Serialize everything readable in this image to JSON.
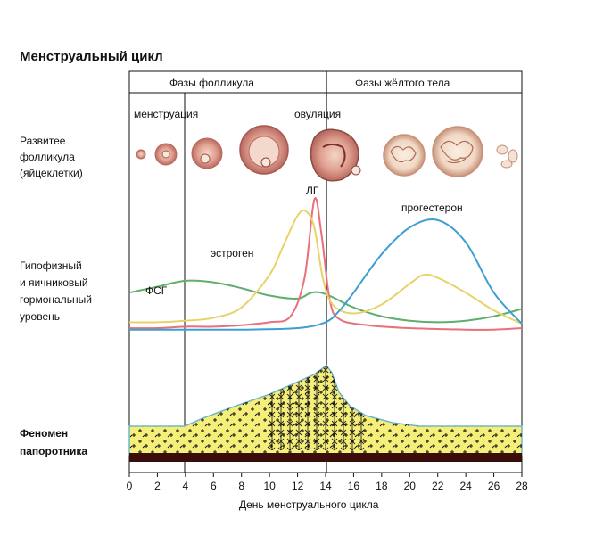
{
  "title": "Менструальный цикл",
  "phases": {
    "follicular": "Фазы фолликула",
    "luteal": "Фазы жёлтого тела"
  },
  "markers": {
    "menstruation": "менструация",
    "ovulation": "овуляция"
  },
  "row_labels": {
    "follicle": [
      "Развитее",
      "фолликула",
      "(яйцеклетки)"
    ],
    "hormones": [
      "Гипофизный",
      "и яичниковый",
      "гормональный",
      "уровень"
    ],
    "fern": [
      "Феномен",
      "папоротника"
    ]
  },
  "hormone_labels": {
    "fsh": "ФСГ",
    "lh": "ЛГ",
    "estrogen": "эстроген",
    "progesterone": "прогестерон"
  },
  "x_axis": {
    "label": "День менструального цикла",
    "ticks": [
      "0",
      "2",
      "4",
      "6",
      "8",
      "10",
      "12",
      "14",
      "16",
      "18",
      "20",
      "22",
      "24",
      "26",
      "28"
    ]
  },
  "colors": {
    "fsh": "#5fae6e",
    "lh": "#e8707a",
    "estrogen": "#e8d36a",
    "progesterone": "#3e9fd2",
    "fern_fill": "#f5ef7a",
    "fern_base": "#3b0d0a",
    "fern_outline": "#6fb8c8",
    "tissue": "#c2706a"
  },
  "chart_data": {
    "type": "line",
    "xlim": [
      0,
      28
    ],
    "xlabel": "День менструального цикла",
    "series": [
      {
        "name": "ФСГ",
        "points": [
          [
            0,
            0.3
          ],
          [
            2,
            0.34
          ],
          [
            4,
            0.38
          ],
          [
            6,
            0.37
          ],
          [
            8,
            0.33
          ],
          [
            10,
            0.28
          ],
          [
            12,
            0.26
          ],
          [
            13,
            0.3
          ],
          [
            14,
            0.29
          ],
          [
            16,
            0.2
          ],
          [
            18,
            0.14
          ],
          [
            20,
            0.11
          ],
          [
            22,
            0.1
          ],
          [
            24,
            0.11
          ],
          [
            26,
            0.14
          ],
          [
            28,
            0.19
          ]
        ]
      },
      {
        "name": "ЛГ",
        "points": [
          [
            0,
            0.06
          ],
          [
            2,
            0.06
          ],
          [
            4,
            0.07
          ],
          [
            6,
            0.07
          ],
          [
            8,
            0.08
          ],
          [
            10,
            0.1
          ],
          [
            11.5,
            0.14
          ],
          [
            12.5,
            0.4
          ],
          [
            13.2,
            0.93
          ],
          [
            13.7,
            0.7
          ],
          [
            14.3,
            0.25
          ],
          [
            15,
            0.12
          ],
          [
            17,
            0.08
          ],
          [
            20,
            0.06
          ],
          [
            24,
            0.05
          ],
          [
            26,
            0.05
          ],
          [
            28,
            0.06
          ]
        ]
      },
      {
        "name": "эстроген",
        "points": [
          [
            0,
            0.1
          ],
          [
            2,
            0.1
          ],
          [
            4,
            0.11
          ],
          [
            6,
            0.13
          ],
          [
            8,
            0.2
          ],
          [
            10,
            0.42
          ],
          [
            11,
            0.62
          ],
          [
            12,
            0.82
          ],
          [
            12.6,
            0.85
          ],
          [
            13.2,
            0.74
          ],
          [
            13.8,
            0.4
          ],
          [
            14.5,
            0.22
          ],
          [
            16,
            0.16
          ],
          [
            18,
            0.22
          ],
          [
            20,
            0.36
          ],
          [
            21,
            0.42
          ],
          [
            22,
            0.4
          ],
          [
            24,
            0.3
          ],
          [
            26,
            0.18
          ],
          [
            28,
            0.09
          ]
        ]
      },
      {
        "name": "прогестерон",
        "points": [
          [
            0,
            0.05
          ],
          [
            4,
            0.05
          ],
          [
            8,
            0.05
          ],
          [
            12,
            0.06
          ],
          [
            14,
            0.1
          ],
          [
            15,
            0.18
          ],
          [
            16,
            0.3
          ],
          [
            18,
            0.56
          ],
          [
            20,
            0.74
          ],
          [
            22,
            0.79
          ],
          [
            24,
            0.64
          ],
          [
            26,
            0.3
          ],
          [
            28,
            0.09
          ]
        ]
      }
    ]
  }
}
